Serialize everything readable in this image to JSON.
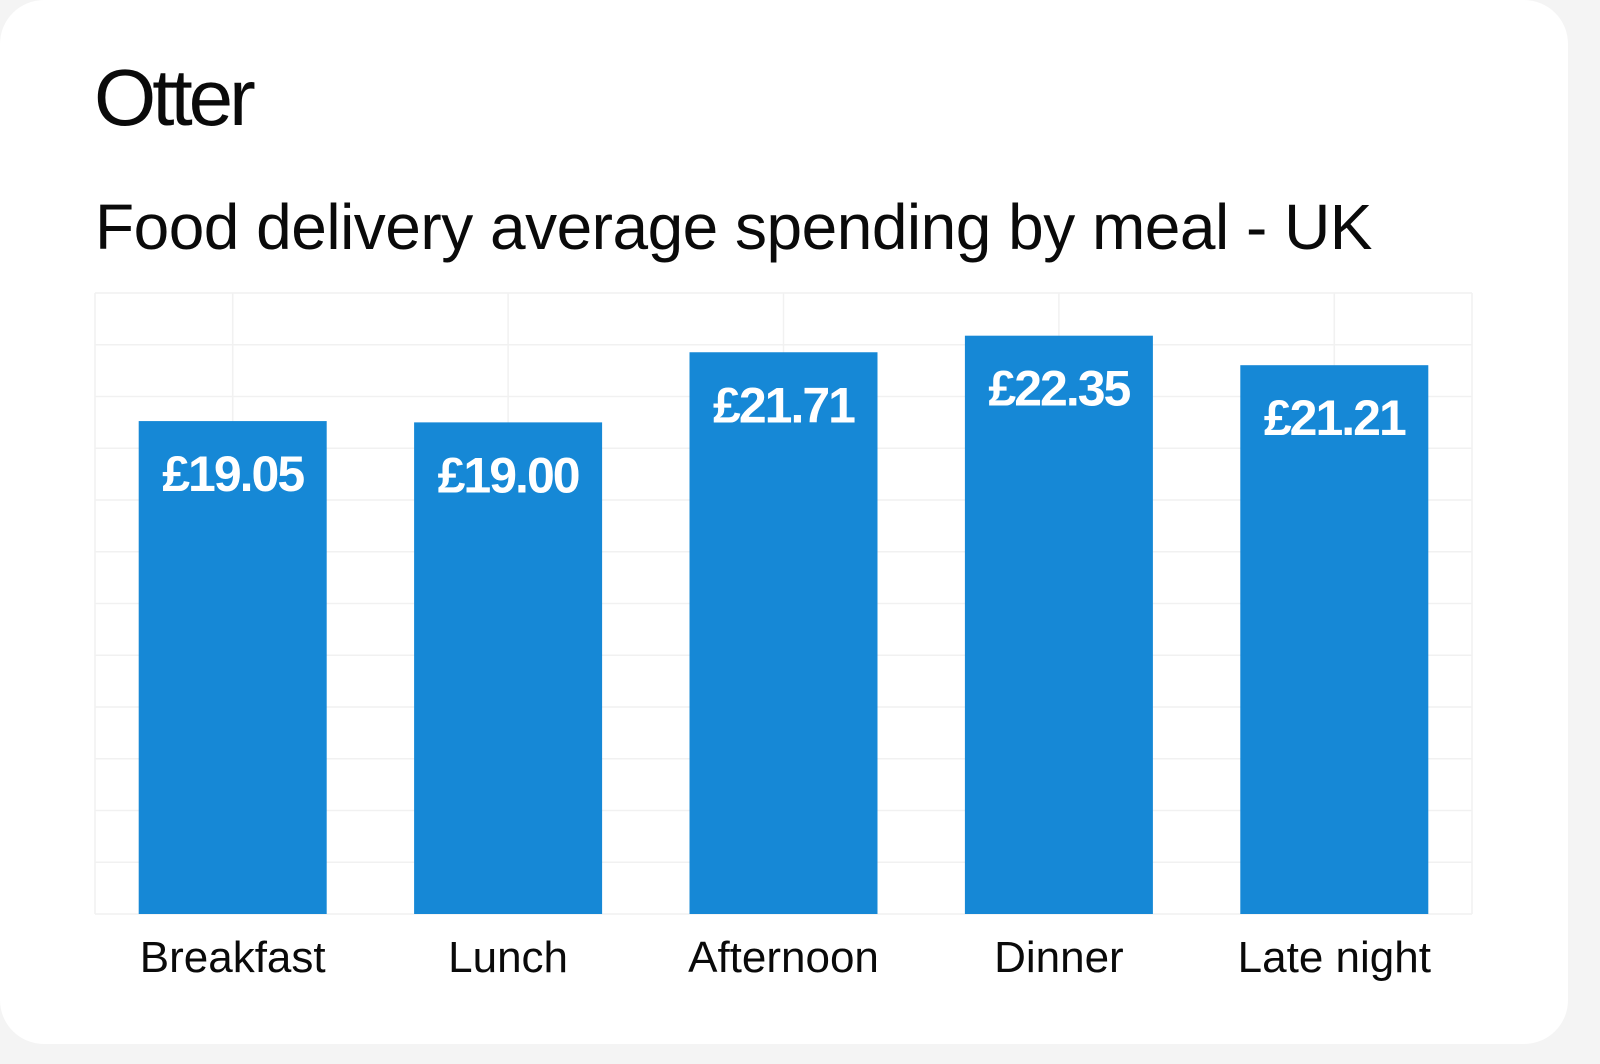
{
  "brand": "Otter",
  "chart_data": {
    "type": "bar",
    "title": "Food delivery average spending by meal - UK",
    "categories": [
      "Breakfast",
      "Lunch",
      "Afternoon",
      "Dinner",
      "Late night"
    ],
    "values": [
      19.05,
      19.0,
      21.71,
      22.35,
      21.21
    ],
    "data_labels": [
      "£19.05",
      "£19.00",
      "£21.71",
      "£22.35",
      "£21.21"
    ],
    "xlabel": "",
    "ylabel": "",
    "ylim": [
      0,
      24
    ],
    "grid": true,
    "bar_color": "#1688d6",
    "label_color": "#ffffff"
  }
}
